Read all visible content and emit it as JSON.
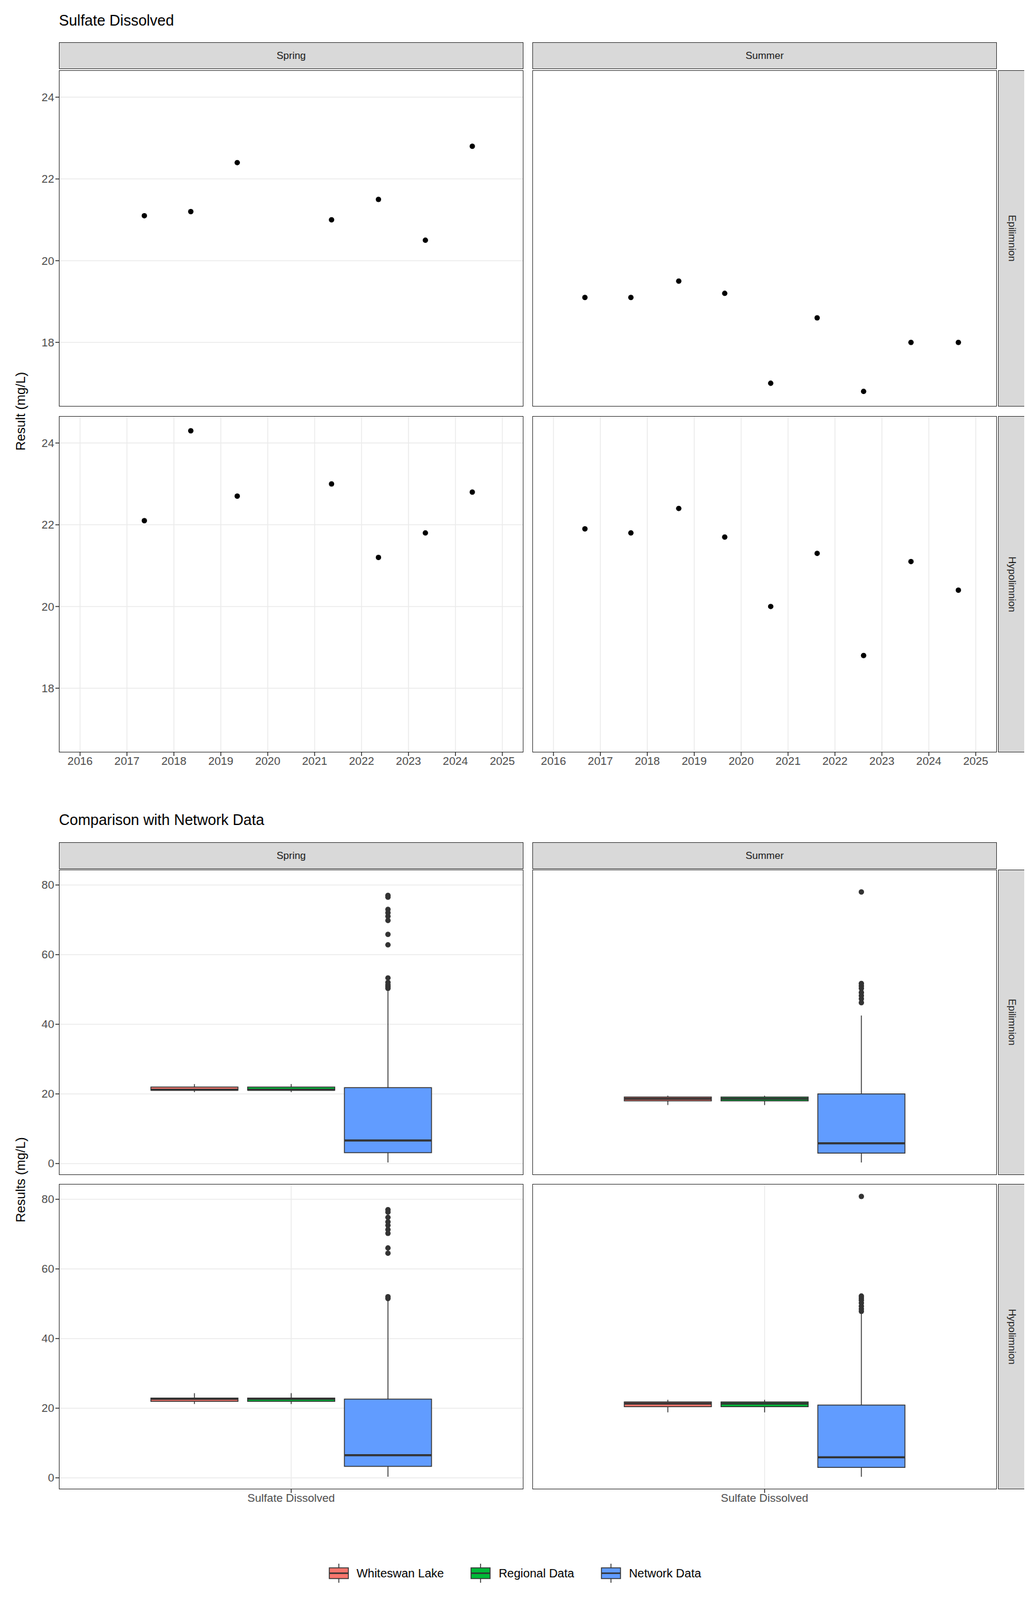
{
  "chart_data": [
    {
      "type": "scatter",
      "title": "Sulfate Dissolved",
      "y_label": "Result (mg/L)",
      "columns": [
        "Spring",
        "Summer"
      ],
      "rows": [
        "Epilimnion",
        "Hypolimnion"
      ],
      "xlim": [
        2015.55,
        2025.45
      ],
      "xticks": [
        2016,
        2017,
        2018,
        2019,
        2020,
        2021,
        2022,
        2023,
        2024,
        2025
      ],
      "ylim": [
        16.43,
        24.66
      ],
      "yticks": [
        18,
        20,
        22,
        24
      ],
      "grid": true,
      "color": "#000000",
      "marker": "circle",
      "panels": [
        {
          "column": "Spring",
          "row": "Epilimnion",
          "x": [
            2017.37,
            2018.36,
            2019.35,
            2021.36,
            2022.36,
            2023.36,
            2024.36
          ],
          "y": [
            21.1,
            21.2,
            22.4,
            21.0,
            21.5,
            20.5,
            22.8
          ]
        },
        {
          "column": "Summer",
          "row": "Epilimnion",
          "x": [
            2016.67,
            2017.65,
            2018.67,
            2019.65,
            2020.63,
            2021.62,
            2022.61,
            2023.62,
            2024.63
          ],
          "y": [
            19.1,
            19.1,
            19.5,
            19.2,
            17.0,
            18.6,
            16.8,
            18.0,
            18.0
          ]
        },
        {
          "column": "Spring",
          "row": "Hypolimnion",
          "x": [
            2017.37,
            2018.36,
            2019.35,
            2021.36,
            2022.36,
            2023.36,
            2024.36
          ],
          "y": [
            22.1,
            24.3,
            22.7,
            23.0,
            21.2,
            21.8,
            22.8
          ]
        },
        {
          "column": "Summer",
          "row": "Hypolimnion",
          "x": [
            2016.67,
            2017.65,
            2018.67,
            2019.65,
            2020.63,
            2021.62,
            2022.61,
            2023.62,
            2024.63
          ],
          "y": [
            21.9,
            21.8,
            22.4,
            21.7,
            20.0,
            21.3,
            18.8,
            21.1,
            20.4
          ]
        }
      ]
    },
    {
      "type": "boxplot",
      "title": "Comparison with Network Data",
      "y_label": "Results (mg/L)",
      "columns": [
        "Spring",
        "Summer"
      ],
      "rows": [
        "Epilimnion",
        "Hypolimnion"
      ],
      "categories": [
        "Sulfate Dissolved"
      ],
      "ylim": [
        -3.3,
        84.4
      ],
      "yticks": [
        0,
        20,
        40,
        60,
        80
      ],
      "grid": true,
      "legend": "bottom",
      "panels": [
        {
          "column": "Spring",
          "row": "Epilimnion"
        },
        {
          "column": "Summer",
          "row": "Epilimnion"
        },
        {
          "column": "Spring",
          "row": "Hypolimnion"
        },
        {
          "column": "Summer",
          "row": "Hypolimnion"
        }
      ],
      "series": [
        {
          "name": "Whiteswan Lake",
          "color": "#F8766D",
          "values": [
            {
              "whisker_low": 20.5,
              "q1": 21.05,
              "median": 21.2,
              "q3": 21.95,
              "whisker_high": 22.8,
              "outliers": []
            },
            {
              "whisker_low": 16.8,
              "q1": 18.0,
              "median": 18.6,
              "q3": 19.1,
              "whisker_high": 19.5,
              "outliers": []
            },
            {
              "whisker_low": 21.2,
              "q1": 21.95,
              "median": 22.7,
              "q3": 22.9,
              "whisker_high": 24.3,
              "outliers": []
            },
            {
              "whisker_low": 18.8,
              "q1": 20.4,
              "median": 21.3,
              "q3": 21.8,
              "whisker_high": 22.4,
              "outliers": []
            }
          ]
        },
        {
          "name": "Regional Data",
          "color": "#00BA38",
          "values": [
            {
              "whisker_low": 20.5,
              "q1": 21.05,
              "median": 21.2,
              "q3": 21.95,
              "whisker_high": 22.8,
              "outliers": []
            },
            {
              "whisker_low": 16.8,
              "q1": 18.0,
              "median": 18.6,
              "q3": 19.1,
              "whisker_high": 19.5,
              "outliers": []
            },
            {
              "whisker_low": 21.2,
              "q1": 21.95,
              "median": 22.7,
              "q3": 22.9,
              "whisker_high": 24.3,
              "outliers": []
            },
            {
              "whisker_low": 18.8,
              "q1": 20.4,
              "median": 21.3,
              "q3": 21.8,
              "whisker_high": 22.4,
              "outliers": []
            }
          ]
        },
        {
          "name": "Network Data",
          "color": "#619CFF",
          "values": [
            {
              "whisker_low": 0.3,
              "q1": 3.1,
              "median": 6.6,
              "q3": 21.8,
              "whisker_high": 49.5,
              "outliers": [
                50.3,
                50.8,
                51.3,
                52.0,
                53.3,
                62.8,
                65.8,
                69.8,
                71.0,
                72.0,
                73.0,
                76.5,
                77.0
              ]
            },
            {
              "whisker_low": 0.3,
              "q1": 3.0,
              "median": 5.8,
              "q3": 20.0,
              "whisker_high": 42.5,
              "outliers": [
                46.2,
                47.3,
                48.2,
                49.1,
                50.3,
                51.0,
                51.7,
                78.0
              ]
            },
            {
              "whisker_low": 0.3,
              "q1": 3.3,
              "median": 6.5,
              "q3": 22.6,
              "whisker_high": 51.0,
              "outliers": [
                51.5,
                52.0,
                64.5,
                66.0,
                70.2,
                71.3,
                72.5,
                73.5,
                74.8,
                76.3,
                77.0
              ]
            },
            {
              "whisker_low": 0.3,
              "q1": 3.0,
              "median": 5.9,
              "q3": 20.9,
              "whisker_high": 47.5,
              "outliers": [
                47.8,
                48.5,
                49.3,
                50.2,
                51.0,
                51.6,
                52.2,
                80.8
              ]
            }
          ]
        }
      ]
    }
  ]
}
